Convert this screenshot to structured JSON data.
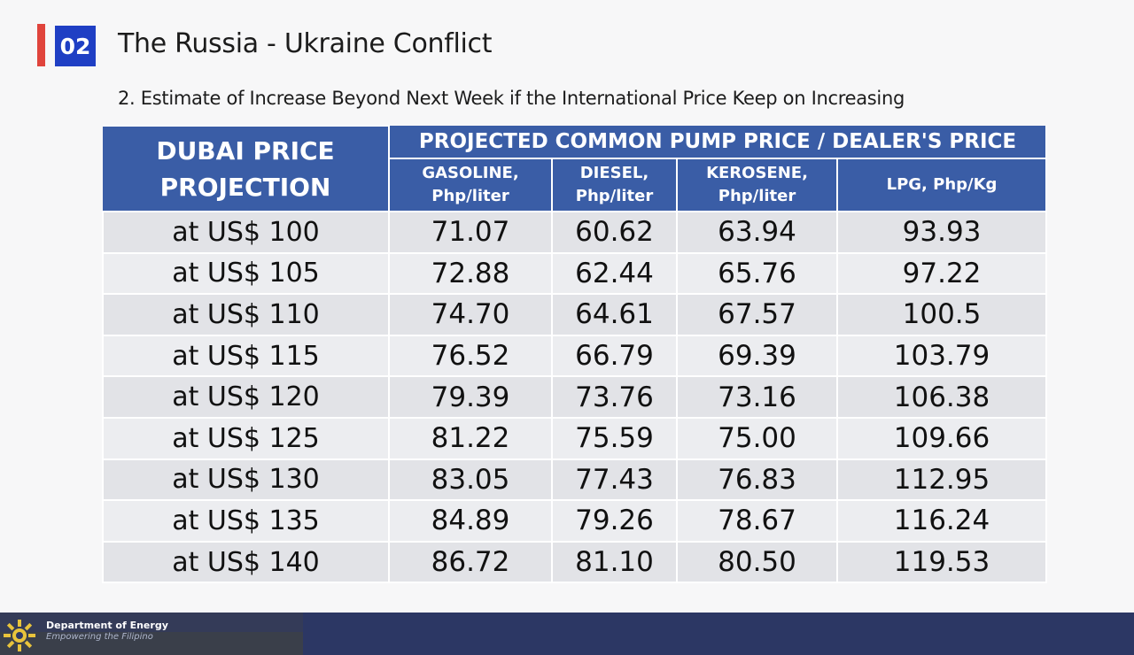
{
  "header": {
    "section_number": "02",
    "title": "The Russia - Ukraine Conflict",
    "subtitle": "2. Estimate of Increase Beyond Next Week if the International Price Keep on Increasing"
  },
  "table": {
    "corner_header_line1": "DUBAI PRICE",
    "corner_header_line2": "PROJECTION",
    "group_header": "PROJECTED COMMON PUMP PRICE / DEALER'S PRICE",
    "columns": [
      {
        "line1": "GASOLINE,",
        "line2": "Php/liter"
      },
      {
        "line1": "DIESEL,",
        "line2": "Php/liter"
      },
      {
        "line1": "KEROSENE,",
        "line2": "Php/liter"
      },
      {
        "line1": "LPG, Php/Kg",
        "line2": ""
      }
    ],
    "rows": [
      {
        "label": "at US$ 100",
        "values": [
          "71.07",
          "60.62",
          "63.94",
          "93.93"
        ]
      },
      {
        "label": "at US$ 105",
        "values": [
          "72.88",
          "62.44",
          "65.76",
          "97.22"
        ]
      },
      {
        "label": "at US$ 110",
        "values": [
          "74.70",
          "64.61",
          "67.57",
          "100.5"
        ]
      },
      {
        "label": "at US$ 115",
        "values": [
          "76.52",
          "66.79",
          "69.39",
          "103.79"
        ]
      },
      {
        "label": "at US$ 120",
        "values": [
          "79.39",
          "73.76",
          "73.16",
          "106.38"
        ]
      },
      {
        "label": "at US$ 125",
        "values": [
          "81.22",
          "75.59",
          "75.00",
          "109.66"
        ]
      },
      {
        "label": "at US$ 130",
        "values": [
          "83.05",
          "77.43",
          "76.83",
          "112.95"
        ]
      },
      {
        "label": "at US$ 135",
        "values": [
          "84.89",
          "79.26",
          "78.67",
          "116.24"
        ]
      },
      {
        "label": "at US$ 140",
        "values": [
          "86.72",
          "81.10",
          "80.50",
          "119.53"
        ]
      }
    ]
  },
  "footer": {
    "department": "Department of Energy",
    "tagline": "Empowering the Filipino",
    "logo_icon": "sun-gear-icon"
  },
  "colors": {
    "accent_red": "#e0443c",
    "badge_blue": "#1f3fc4",
    "header_blue": "#3a5da6",
    "footer_navy": "#2c3764"
  }
}
